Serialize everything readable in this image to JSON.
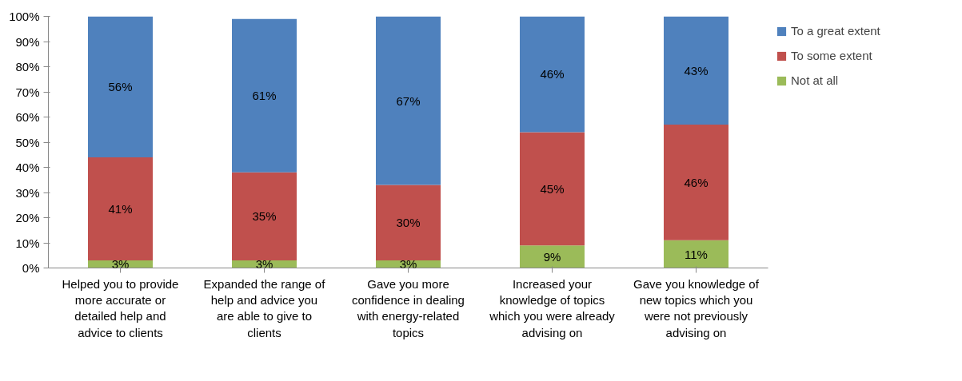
{
  "chart_data": {
    "type": "bar",
    "stacked": true,
    "legend": "right",
    "grid": false,
    "categories": [
      "Helped you to provide more accurate or detailed help and advice to clients",
      "Expanded the range of help and advice you are able to give to clients",
      "Gave you more confidence in dealing with energy-related topics",
      "Increased your knowledge of topics which you were already advising on",
      "Gave you knowledge of new topics which you were not previously advising on"
    ],
    "series": [
      {
        "name": "Not at all",
        "color": "#9bbb59",
        "values": [
          3,
          3,
          3,
          9,
          11
        ],
        "value_labels": [
          "3%",
          "3%",
          "3%",
          "9%",
          "11%"
        ]
      },
      {
        "name": "To some extent",
        "color": "#c0504d",
        "values": [
          41,
          35,
          30,
          45,
          46
        ],
        "value_labels": [
          "41%",
          "35%",
          "30%",
          "45%",
          "46%"
        ]
      },
      {
        "name": "To a great extent",
        "color": "#4f81bd",
        "values": [
          56,
          61,
          67,
          46,
          43
        ],
        "value_labels": [
          "56%",
          "61%",
          "67%",
          "46%",
          "43%"
        ]
      }
    ],
    "ylim": [
      0,
      100
    ],
    "yticks": [
      {
        "value": 0,
        "label": "0%"
      },
      {
        "value": 10,
        "label": "10%"
      },
      {
        "value": 20,
        "label": "20%"
      },
      {
        "value": 30,
        "label": "30%"
      },
      {
        "value": 40,
        "label": "40%"
      },
      {
        "value": 50,
        "label": "50%"
      },
      {
        "value": 60,
        "label": "60%"
      },
      {
        "value": 70,
        "label": "70%"
      },
      {
        "value": 80,
        "label": "80%"
      },
      {
        "value": 90,
        "label": "90%"
      },
      {
        "value": 100,
        "label": "100%"
      }
    ]
  }
}
